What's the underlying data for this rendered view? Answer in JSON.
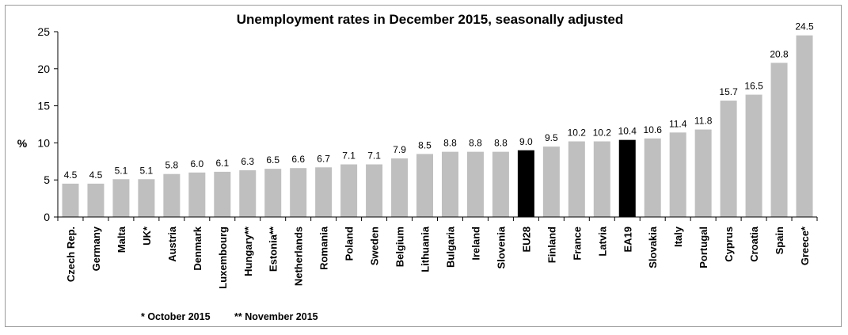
{
  "chart_data": {
    "type": "bar",
    "title": "Unemployment rates in December 2015, seasonally adjusted",
    "ylabel": "%",
    "xlabel": "",
    "ylim": [
      0,
      25
    ],
    "yticks": [
      0,
      5,
      10,
      15,
      20,
      25
    ],
    "grid": false,
    "categories": [
      "Czech Rep.",
      "Germany",
      "Malta",
      "UK*",
      "Austria",
      "Denmark",
      "Luxembourg",
      "Hungary**",
      "Estonia**",
      "Netherlands",
      "Romania",
      "Poland",
      "Sweden",
      "Belgium",
      "Lithuania",
      "Bulgaria",
      "Ireland",
      "Slovenia",
      "EU28",
      "Finland",
      "France",
      "Latvia",
      "EA19",
      "Slovakia",
      "Italy",
      "Portugal",
      "Cyprus",
      "Croatia",
      "Spain",
      "Greece*"
    ],
    "values": [
      4.5,
      4.5,
      5.1,
      5.1,
      5.8,
      6.0,
      6.1,
      6.3,
      6.5,
      6.6,
      6.7,
      7.1,
      7.1,
      7.9,
      8.5,
      8.8,
      8.8,
      8.8,
      9.0,
      9.5,
      10.2,
      10.2,
      10.4,
      10.6,
      11.4,
      11.8,
      15.7,
      16.5,
      20.8,
      24.5
    ],
    "value_labels": [
      "4.5",
      "4.5",
      "5.1",
      "5.1",
      "5.8",
      "6.0",
      "6.1",
      "6.3",
      "6.5",
      "6.6",
      "6.7",
      "7.1",
      "7.1",
      "7.9",
      "8.5",
      "8.8",
      "8.8",
      "8.8",
      "9.0",
      "9.5",
      "10.2",
      "10.2",
      "10.4",
      "10.6",
      "11.4",
      "11.8",
      "15.7",
      "16.5",
      "20.8",
      "24.5"
    ],
    "highlighted": [
      "EU28",
      "EA19"
    ],
    "colors": {
      "bar": "#bfbfbf",
      "highlight": "#000000",
      "axis": "#000000"
    },
    "notes": [
      "* October 2015",
      "** November 2015"
    ]
  }
}
